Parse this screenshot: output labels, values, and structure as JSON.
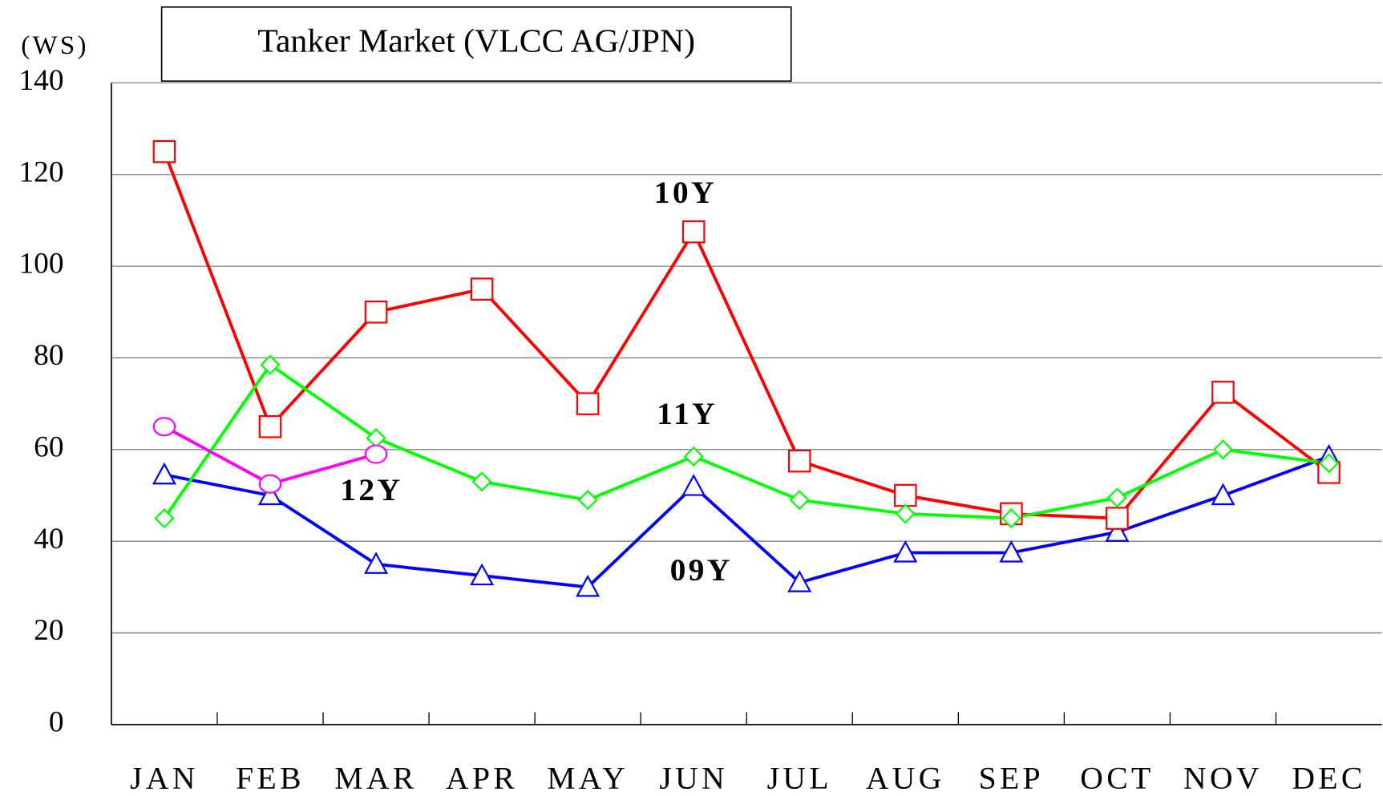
{
  "chart_data": {
    "type": "line",
    "title": "Tanker Market (VLCC AG/JPN)",
    "y_label": "(WS)",
    "categories": [
      "JAN",
      "FEB",
      "MAR",
      "APR",
      "MAY",
      "JUN",
      "JUL",
      "AUG",
      "SEP",
      "OCT",
      "NOV",
      "DEC"
    ],
    "series": [
      {
        "name": "09Y",
        "color": "#0000ff",
        "marker": "triangle",
        "values": [
          54.5,
          50,
          35,
          32.5,
          30,
          52,
          31,
          37.5,
          37.5,
          42,
          50,
          58.5
        ]
      },
      {
        "name": "10Y",
        "color": "#ff0000",
        "marker": "square",
        "values": [
          125,
          65,
          90,
          95,
          70,
          107.5,
          57.5,
          50,
          46,
          45,
          72.5,
          55
        ]
      },
      {
        "name": "11Y",
        "color": "#00ff00",
        "marker": "diamond",
        "values": [
          45,
          78.5,
          62.5,
          53,
          49,
          58.5,
          49,
          46,
          45,
          49.5,
          60,
          57
        ]
      },
      {
        "name": "12Y",
        "color": "#ff00ff",
        "marker": "circle",
        "values": [
          65,
          52.5,
          59,
          null,
          null,
          null,
          null,
          null,
          null,
          null,
          null,
          null
        ]
      }
    ],
    "ylim": [
      0,
      140
    ],
    "yticks": [
      0,
      20,
      40,
      60,
      80,
      100,
      120,
      140
    ],
    "grid": true
  }
}
